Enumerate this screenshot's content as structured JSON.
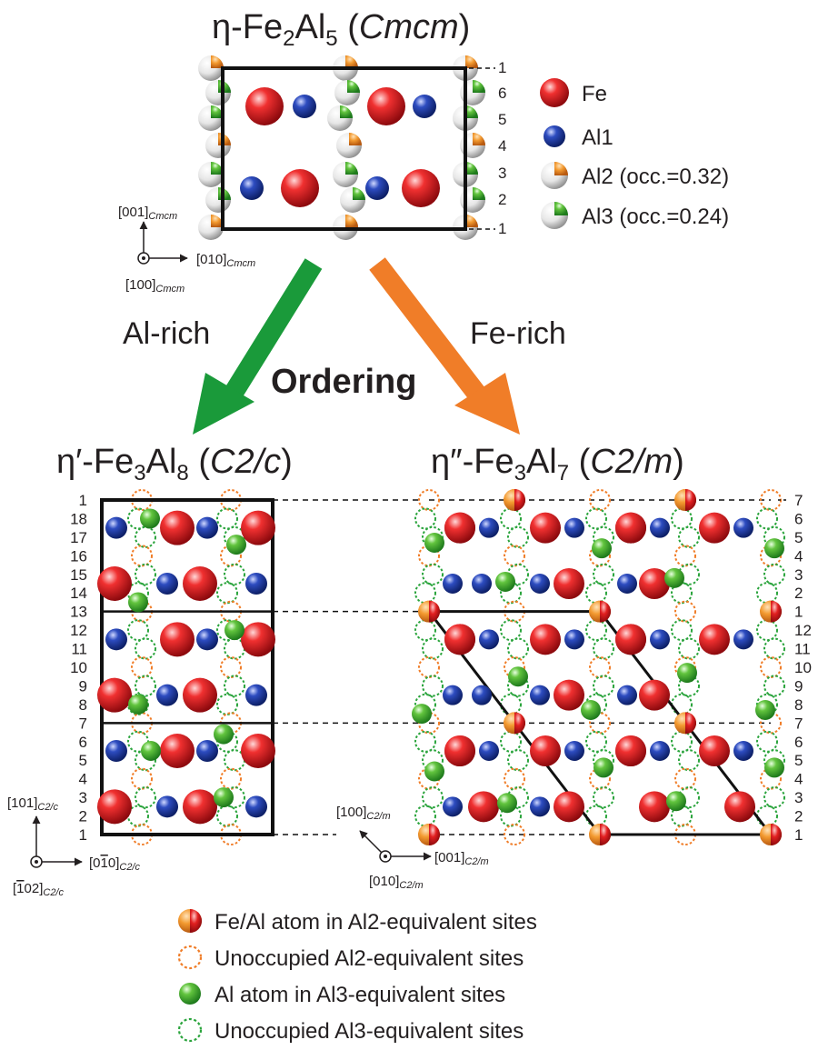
{
  "top_structure": {
    "prefix": "η-Fe",
    "sub1": "2",
    "mid": "Al",
    "sub2": "5",
    "space_group": "Cmcm",
    "layer_labels": [
      "1",
      "6",
      "5",
      "4",
      "3",
      "2",
      "1"
    ],
    "axes": {
      "up": "[001]",
      "right": "[010]",
      "out": "[100]",
      "subscript": "Cmcm"
    }
  },
  "top_legend": {
    "fe": "Fe",
    "al1": "Al1",
    "al2": "Al2 (occ.=0.32)",
    "al3": "Al3 (occ.=0.24)"
  },
  "transitions": {
    "left_label": "Al-rich",
    "right_label": "Fe-rich",
    "center_label": "Ordering",
    "left_arrow_color": "#1a9a3a",
    "right_arrow_color": "#f07d28"
  },
  "left_structure": {
    "prefix": "η′-Fe",
    "sub1": "3",
    "mid": "Al",
    "sub2": "8",
    "space_group": "C2/c",
    "layer_labels": [
      "1",
      "18",
      "17",
      "16",
      "15",
      "14",
      "13",
      "12",
      "11",
      "10",
      "9",
      "8",
      "7",
      "6",
      "5",
      "4",
      "3",
      "2",
      "1"
    ],
    "axes": {
      "up": "[101]",
      "right": "[0",
      "right_bar": "1",
      "right_end": "0]",
      "out_bar": "1",
      "out_end": "02]",
      "subscript": "C2/c"
    }
  },
  "right_structure": {
    "prefix": "η″-Fe",
    "sub1": "3",
    "mid": "Al",
    "sub2": "7",
    "space_group": "C2/m",
    "layer_labels": [
      "7",
      "6",
      "5",
      "4",
      "3",
      "2",
      "1",
      "12",
      "11",
      "10",
      "9",
      "8",
      "7",
      "6",
      "5",
      "4",
      "3",
      "2",
      "1"
    ],
    "axes": {
      "up": "[100]",
      "right": "[001]",
      "out": "[010]",
      "subscript": "C2/m"
    }
  },
  "bottom_legend": {
    "items": [
      "Fe/Al atom in Al2-equivalent sites",
      "Unoccupied Al2-equivalent sites",
      "Al atom  in Al3-equivalent sites",
      "Unoccupied Al3-equivalent sites"
    ]
  },
  "colors": {
    "fe": "#d8141a",
    "al1": "#1f3c9c",
    "al2_accent": "#f07d28",
    "al3_accent": "#2aa43c"
  }
}
